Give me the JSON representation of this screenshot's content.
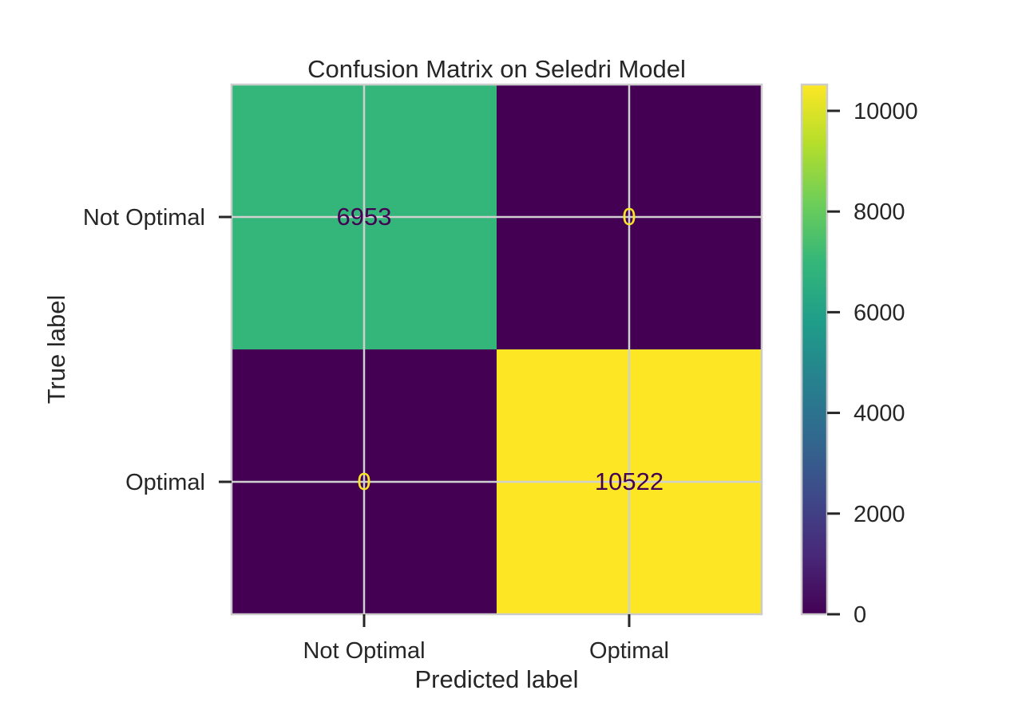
{
  "chart_data": {
    "type": "heatmap",
    "title": "Confusion Matrix on Seledri Model",
    "xlabel": "Predicted label",
    "ylabel": "True label",
    "x_categories": [
      "Not Optimal",
      "Optimal"
    ],
    "y_categories": [
      "Not Optimal",
      "Optimal"
    ],
    "matrix": [
      [
        6953,
        0
      ],
      [
        0,
        10522
      ]
    ],
    "colormap": "viridis",
    "colorbar": {
      "range": [
        0,
        10522
      ],
      "ticks": [
        0,
        2000,
        4000,
        6000,
        8000,
        10000
      ],
      "tick_labels": [
        "0",
        "2000",
        "4000",
        "6000",
        "8000",
        "10000"
      ]
    },
    "grid": true,
    "colors": {
      "grid": "#d0d0d0",
      "frame": "#cccccc",
      "text": "#262626"
    }
  }
}
